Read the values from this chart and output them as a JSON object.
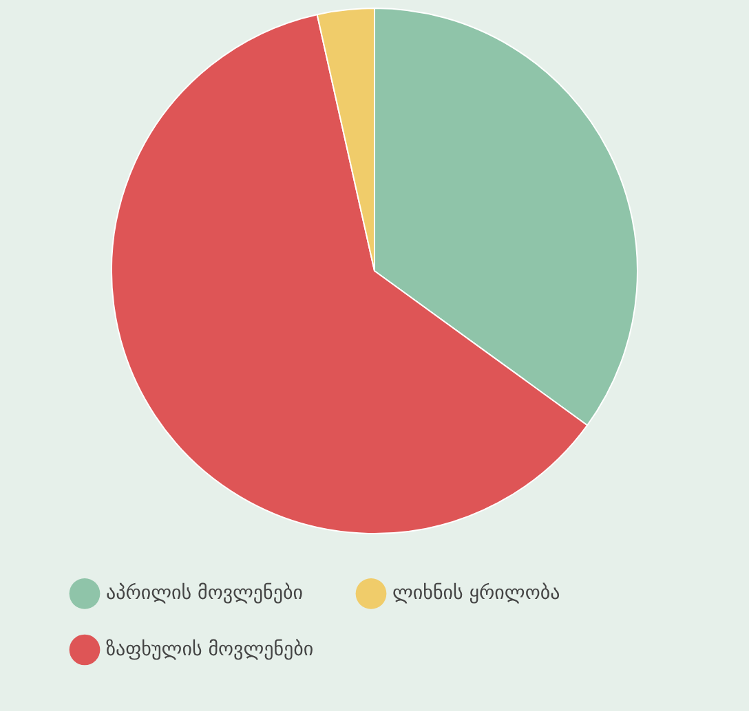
{
  "chart_data": {
    "type": "pie",
    "categories": [
      "აპრილის მოვლენები",
      "ზაფხულის მოვლენები",
      "ლიხნის ყრილობა"
    ],
    "values": [
      35,
      61.5,
      3.5
    ],
    "colors": [
      "#8fc4a9",
      "#de5556",
      "#f0cc6a"
    ],
    "legend": "bottom"
  }
}
